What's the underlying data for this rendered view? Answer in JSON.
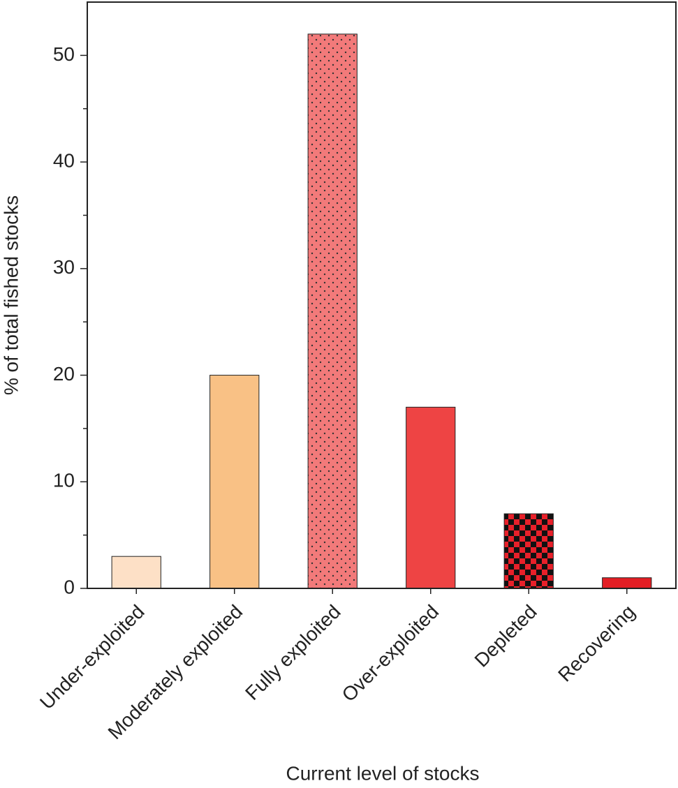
{
  "chart_data": {
    "type": "bar",
    "x_label": "Current level of stocks",
    "y_label": "% of total fished stocks",
    "categories": [
      "Under-exploited",
      "Moderately exploited",
      "Fully exploited",
      "Over-exploited",
      "Depleted",
      "Recovering"
    ],
    "values": [
      3,
      20,
      52,
      17,
      7,
      1
    ],
    "colors": [
      "#fde0c6",
      "#f9c185",
      "#f27a7a",
      "#ee4444",
      "#e8202a",
      "#e31e24"
    ],
    "patterns": [
      null,
      null,
      "dots",
      null,
      "checker",
      null
    ],
    "ylim": [
      0,
      55
    ],
    "yticks": [
      0,
      10,
      20,
      30,
      40,
      50
    ],
    "yminorticks": [
      5,
      15,
      25,
      35,
      45
    ]
  }
}
